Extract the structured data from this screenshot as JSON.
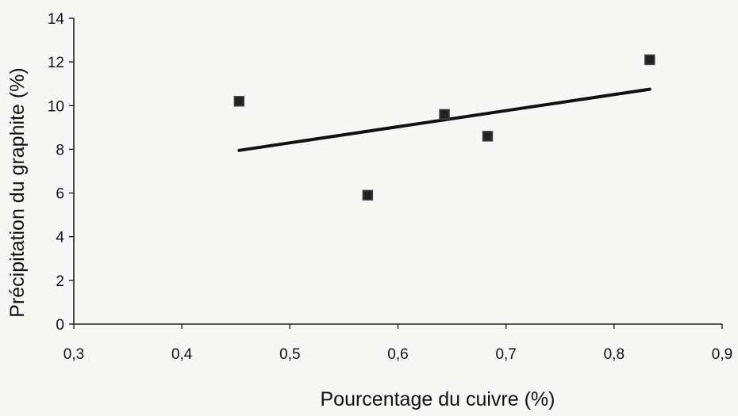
{
  "chart_data": {
    "type": "scatter",
    "title": "",
    "xlabel": "Pourcentage du cuivre (%)",
    "ylabel": "Précipitation du graphite (%)",
    "xlim": [
      0.3,
      0.9
    ],
    "ylim": [
      0,
      14
    ],
    "x_ticks": [
      0.3,
      0.4,
      0.5,
      0.6,
      0.7,
      0.8,
      0.9
    ],
    "x_tick_labels": [
      "0,3",
      "0,4",
      "0,5",
      "0,6",
      "0,7",
      "0,8",
      "0,9"
    ],
    "y_ticks": [
      0,
      2,
      4,
      6,
      8,
      10,
      12,
      14
    ],
    "y_tick_labels": [
      "0",
      "2",
      "4",
      "6",
      "8",
      "10",
      "12",
      "14"
    ],
    "grid": false,
    "legend": "none",
    "series": [
      {
        "marker": "square",
        "color": "#222222",
        "points": [
          {
            "x": 0.453,
            "y": 10.2
          },
          {
            "x": 0.572,
            "y": 5.9
          },
          {
            "x": 0.643,
            "y": 9.6
          },
          {
            "x": 0.683,
            "y": 8.6
          },
          {
            "x": 0.833,
            "y": 12.1
          }
        ]
      }
    ],
    "trendline": {
      "type": "linear",
      "color": "#111111",
      "points": [
        {
          "x": 0.453,
          "y": 7.95
        },
        {
          "x": 0.833,
          "y": 10.75
        }
      ]
    }
  }
}
